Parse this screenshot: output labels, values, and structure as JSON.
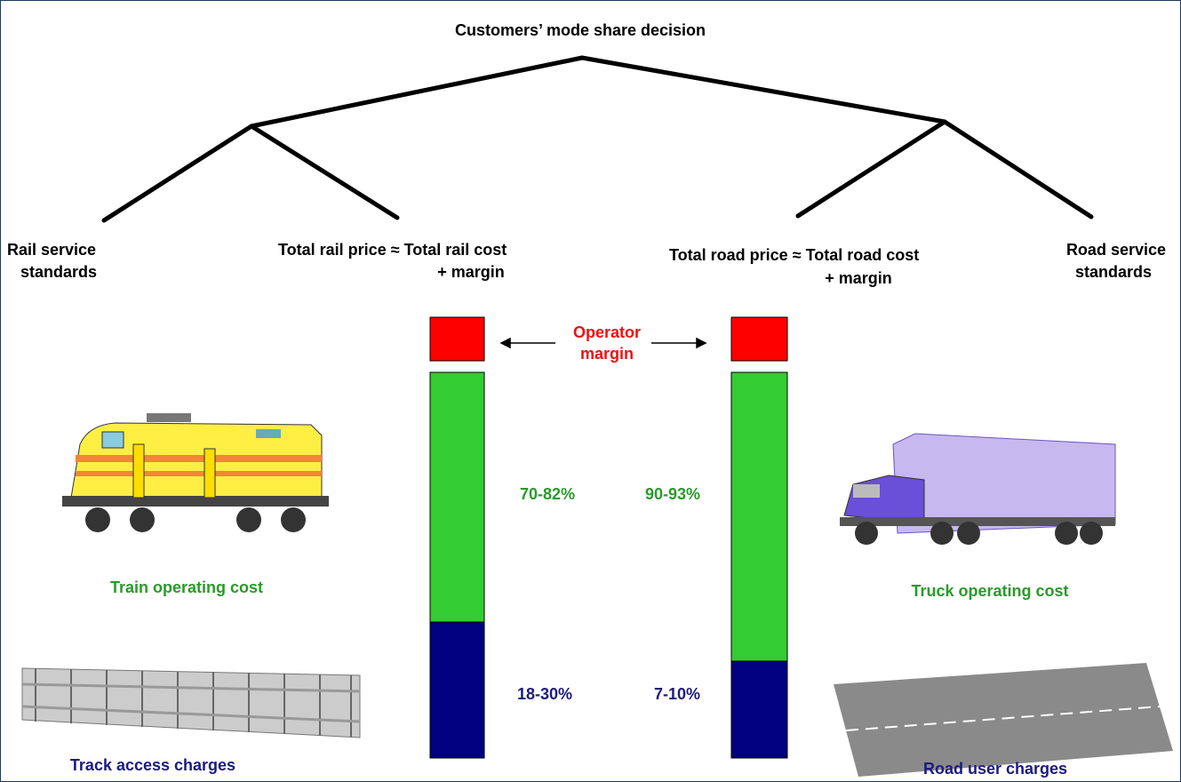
{
  "title": "Customers’ mode share decision",
  "rail": {
    "service_standards": [
      "Rail service",
      "standards"
    ],
    "price": [
      "Total rail price ≈ Total rail cost",
      "+  margin"
    ],
    "operating_cost": "Train operating cost",
    "access_charges": "Track access charges",
    "operating_share": "70-82%",
    "access_share": "18-30%"
  },
  "road": {
    "price": [
      "Total road price ≈ Total road cost",
      "+ margin"
    ],
    "service_standards": [
      "Road service",
      "standards"
    ],
    "operating_cost": "Truck operating cost",
    "access_charges": "Road user charges",
    "operating_share": "90-93%",
    "access_share": "7-10%"
  },
  "operator_margin": [
    "Operator",
    "margin"
  ]
}
